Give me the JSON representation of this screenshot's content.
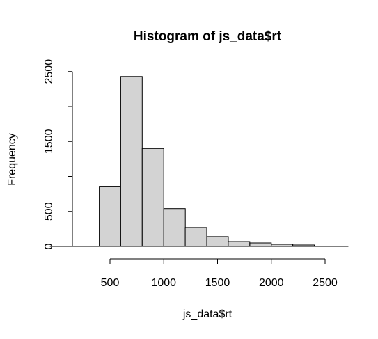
{
  "chart_data": {
    "type": "bar",
    "title": "Histogram of js_data$rt",
    "xlabel": "js_data$rt",
    "ylabel": "Frequency",
    "bins": [
      {
        "x0": 400,
        "x1": 600,
        "count": 860
      },
      {
        "x0": 600,
        "x1": 800,
        "count": 2430
      },
      {
        "x0": 800,
        "x1": 1000,
        "count": 1400
      },
      {
        "x0": 1000,
        "x1": 1200,
        "count": 540
      },
      {
        "x0": 1200,
        "x1": 1400,
        "count": 270
      },
      {
        "x0": 1400,
        "x1": 1600,
        "count": 140
      },
      {
        "x0": 1600,
        "x1": 1800,
        "count": 70
      },
      {
        "x0": 1800,
        "x1": 2000,
        "count": 50
      },
      {
        "x0": 2000,
        "x1": 2200,
        "count": 30
      },
      {
        "x0": 2200,
        "x1": 2400,
        "count": 20
      }
    ],
    "xticks": [
      "500",
      "1000",
      "1500",
      "2000",
      "2500"
    ],
    "yticks": [
      "0",
      "500",
      "1500",
      "2500"
    ],
    "xlim": [
      200,
      2600
    ],
    "ylim": [
      0,
      2500
    ],
    "bar_color": "#d3d3d3",
    "grid": false
  }
}
